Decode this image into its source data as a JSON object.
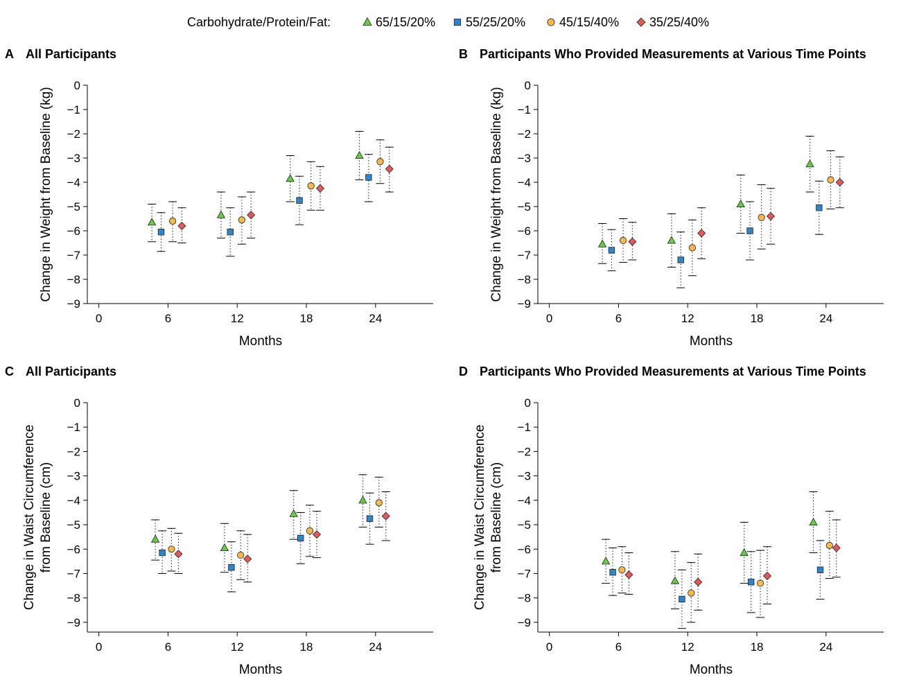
{
  "legend": {
    "title": "Carbohydrate/Protein/Fat:",
    "items": [
      {
        "label": "65/15/20%",
        "color": "#66cc44",
        "shape": "triangle"
      },
      {
        "label": "55/25/20%",
        "color": "#2e86c8",
        "shape": "square"
      },
      {
        "label": "45/15/40%",
        "color": "#f5b84a",
        "shape": "circle"
      },
      {
        "label": "35/25/40%",
        "color": "#e05a5a",
        "shape": "diamond"
      }
    ]
  },
  "chart_data": [
    {
      "panel": "A",
      "title": "All Participants",
      "type": "scatter",
      "xlabel": "Months",
      "ylabel": [
        "Change in Weight from Baseline (kg)"
      ],
      "xticks": [
        0,
        6,
        12,
        18,
        24
      ],
      "yticks": [
        0,
        -1,
        -2,
        -3,
        -4,
        -5,
        -6,
        -7,
        -8,
        -9
      ],
      "xlim": [
        -1,
        29
      ],
      "ylim": [
        -9,
        0
      ],
      "series": [
        {
          "name": "65/15/20%",
          "points": [
            {
              "x": 4.6,
              "y": -5.65,
              "lo": -6.45,
              "hi": -4.9
            },
            {
              "x": 10.6,
              "y": -5.35,
              "lo": -6.3,
              "hi": -4.4
            },
            {
              "x": 16.6,
              "y": -3.85,
              "lo": -4.8,
              "hi": -2.9
            },
            {
              "x": 22.6,
              "y": -2.9,
              "lo": -3.9,
              "hi": -1.9
            }
          ]
        },
        {
          "name": "55/25/20%",
          "points": [
            {
              "x": 5.4,
              "y": -6.05,
              "lo": -6.85,
              "hi": -5.25
            },
            {
              "x": 11.4,
              "y": -6.05,
              "lo": -7.05,
              "hi": -5.05
            },
            {
              "x": 17.4,
              "y": -4.75,
              "lo": -5.75,
              "hi": -3.75
            },
            {
              "x": 23.4,
              "y": -3.8,
              "lo": -4.8,
              "hi": -2.85
            }
          ]
        },
        {
          "name": "45/15/40%",
          "points": [
            {
              "x": 6.4,
              "y": -5.6,
              "lo": -6.45,
              "hi": -4.8
            },
            {
              "x": 12.4,
              "y": -5.55,
              "lo": -6.55,
              "hi": -4.6
            },
            {
              "x": 18.4,
              "y": -4.15,
              "lo": -5.15,
              "hi": -3.15
            },
            {
              "x": 24.4,
              "y": -3.15,
              "lo": -4.05,
              "hi": -2.25
            }
          ]
        },
        {
          "name": "35/25/40%",
          "points": [
            {
              "x": 7.2,
              "y": -5.8,
              "lo": -6.5,
              "hi": -5.05
            },
            {
              "x": 13.2,
              "y": -5.35,
              "lo": -6.3,
              "hi": -4.4
            },
            {
              "x": 19.2,
              "y": -4.25,
              "lo": -5.15,
              "hi": -3.35
            },
            {
              "x": 25.2,
              "y": -3.45,
              "lo": -4.4,
              "hi": -2.55
            }
          ]
        }
      ]
    },
    {
      "panel": "B",
      "title": "Participants Who Provided Measurements at Various Time Points",
      "type": "scatter",
      "xlabel": "Months",
      "ylabel": [
        "Change in Weight from Baseline (kg)"
      ],
      "xticks": [
        0,
        6,
        12,
        18,
        24
      ],
      "yticks": [
        0,
        -1,
        -2,
        -3,
        -4,
        -5,
        -6,
        -7,
        -8,
        -9
      ],
      "xlim": [
        -1,
        29
      ],
      "ylim": [
        -9,
        0
      ],
      "series": [
        {
          "name": "65/15/20%",
          "points": [
            {
              "x": 4.6,
              "y": -6.55,
              "lo": -7.35,
              "hi": -5.7
            },
            {
              "x": 10.6,
              "y": -6.4,
              "lo": -7.5,
              "hi": -5.3
            },
            {
              "x": 16.6,
              "y": -4.9,
              "lo": -6.1,
              "hi": -3.7
            },
            {
              "x": 22.6,
              "y": -3.25,
              "lo": -4.4,
              "hi": -2.1
            }
          ]
        },
        {
          "name": "55/25/20%",
          "points": [
            {
              "x": 5.4,
              "y": -6.8,
              "lo": -7.65,
              "hi": -5.95
            },
            {
              "x": 11.4,
              "y": -7.2,
              "lo": -8.35,
              "hi": -6.05
            },
            {
              "x": 17.4,
              "y": -6.0,
              "lo": -7.2,
              "hi": -4.8
            },
            {
              "x": 23.4,
              "y": -5.05,
              "lo": -6.15,
              "hi": -3.95
            }
          ]
        },
        {
          "name": "45/15/40%",
          "points": [
            {
              "x": 6.4,
              "y": -6.4,
              "lo": -7.3,
              "hi": -5.5
            },
            {
              "x": 12.4,
              "y": -6.7,
              "lo": -7.85,
              "hi": -5.55
            },
            {
              "x": 18.4,
              "y": -5.45,
              "lo": -6.75,
              "hi": -4.1
            },
            {
              "x": 24.4,
              "y": -3.9,
              "lo": -5.1,
              "hi": -2.7
            }
          ]
        },
        {
          "name": "35/25/40%",
          "points": [
            {
              "x": 7.2,
              "y": -6.45,
              "lo": -7.2,
              "hi": -5.65
            },
            {
              "x": 13.2,
              "y": -6.1,
              "lo": -7.15,
              "hi": -5.05
            },
            {
              "x": 19.2,
              "y": -5.4,
              "lo": -6.55,
              "hi": -4.25
            },
            {
              "x": 25.2,
              "y": -4.0,
              "lo": -5.05,
              "hi": -2.95
            }
          ]
        }
      ]
    },
    {
      "panel": "C",
      "title": "All Participants",
      "type": "scatter",
      "xlabel": "Months",
      "ylabel": [
        "Change in Waist Circumference",
        "from Baseline (cm)"
      ],
      "xticks": [
        0,
        6,
        12,
        18,
        24
      ],
      "yticks": [
        0,
        -1,
        -2,
        -3,
        -4,
        -5,
        -6,
        -7,
        -8,
        -9
      ],
      "xlim": [
        -1,
        29
      ],
      "ylim": [
        -9.4,
        0
      ],
      "series": [
        {
          "name": "65/15/20%",
          "points": [
            {
              "x": 4.9,
              "y": -5.6,
              "lo": -6.45,
              "hi": -4.8
            },
            {
              "x": 10.9,
              "y": -5.95,
              "lo": -6.95,
              "hi": -4.95
            },
            {
              "x": 16.9,
              "y": -4.55,
              "lo": -5.6,
              "hi": -3.6
            },
            {
              "x": 22.9,
              "y": -4.0,
              "lo": -5.1,
              "hi": -2.95
            }
          ]
        },
        {
          "name": "55/25/20%",
          "points": [
            {
              "x": 5.5,
              "y": -6.15,
              "lo": -7.0,
              "hi": -5.25
            },
            {
              "x": 11.5,
              "y": -6.75,
              "lo": -7.75,
              "hi": -5.7
            },
            {
              "x": 17.5,
              "y": -5.55,
              "lo": -6.6,
              "hi": -4.5
            },
            {
              "x": 23.5,
              "y": -4.75,
              "lo": -5.8,
              "hi": -3.7
            }
          ]
        },
        {
          "name": "45/15/40%",
          "points": [
            {
              "x": 6.3,
              "y": -6.0,
              "lo": -6.9,
              "hi": -5.15
            },
            {
              "x": 12.3,
              "y": -6.25,
              "lo": -7.25,
              "hi": -5.25
            },
            {
              "x": 18.3,
              "y": -5.25,
              "lo": -6.3,
              "hi": -4.2
            },
            {
              "x": 24.3,
              "y": -4.1,
              "lo": -5.1,
              "hi": -3.05
            }
          ]
        },
        {
          "name": "35/25/40%",
          "points": [
            {
              "x": 6.9,
              "y": -6.2,
              "lo": -7.0,
              "hi": -5.35
            },
            {
              "x": 12.9,
              "y": -6.4,
              "lo": -7.35,
              "hi": -5.4
            },
            {
              "x": 18.9,
              "y": -5.4,
              "lo": -6.35,
              "hi": -4.45
            },
            {
              "x": 24.9,
              "y": -4.65,
              "lo": -5.65,
              "hi": -3.65
            }
          ]
        }
      ]
    },
    {
      "panel": "D",
      "title": "Participants Who Provided Measurements at Various Time Points",
      "type": "scatter",
      "xlabel": "Months",
      "ylabel": [
        "Change in Waist Circumference",
        "from Baseline (cm)"
      ],
      "xticks": [
        0,
        6,
        12,
        18,
        24
      ],
      "yticks": [
        0,
        -1,
        -2,
        -3,
        -4,
        -5,
        -6,
        -7,
        -8,
        -9
      ],
      "xlim": [
        -1,
        29
      ],
      "ylim": [
        -9.4,
        0
      ],
      "series": [
        {
          "name": "65/15/20%",
          "points": [
            {
              "x": 4.9,
              "y": -6.5,
              "lo": -7.4,
              "hi": -5.6
            },
            {
              "x": 10.9,
              "y": -7.3,
              "lo": -8.45,
              "hi": -6.1
            },
            {
              "x": 16.9,
              "y": -6.15,
              "lo": -7.4,
              "hi": -4.9
            },
            {
              "x": 22.9,
              "y": -4.9,
              "lo": -6.15,
              "hi": -3.65
            }
          ]
        },
        {
          "name": "55/25/20%",
          "points": [
            {
              "x": 5.5,
              "y": -6.95,
              "lo": -7.9,
              "hi": -5.95
            },
            {
              "x": 11.5,
              "y": -8.05,
              "lo": -9.25,
              "hi": -6.85
            },
            {
              "x": 17.5,
              "y": -7.35,
              "lo": -8.6,
              "hi": -6.1
            },
            {
              "x": 23.5,
              "y": -6.85,
              "lo": -8.05,
              "hi": -5.65
            }
          ]
        },
        {
          "name": "45/15/40%",
          "points": [
            {
              "x": 6.3,
              "y": -6.85,
              "lo": -7.8,
              "hi": -5.9
            },
            {
              "x": 12.3,
              "y": -7.8,
              "lo": -9.0,
              "hi": -6.55
            },
            {
              "x": 18.3,
              "y": -7.4,
              "lo": -8.8,
              "hi": -6.05
            },
            {
              "x": 24.3,
              "y": -5.85,
              "lo": -7.2,
              "hi": -4.45
            }
          ]
        },
        {
          "name": "35/25/40%",
          "points": [
            {
              "x": 6.9,
              "y": -7.05,
              "lo": -7.85,
              "hi": -6.15
            },
            {
              "x": 12.9,
              "y": -7.35,
              "lo": -8.5,
              "hi": -6.2
            },
            {
              "x": 18.9,
              "y": -7.1,
              "lo": -8.25,
              "hi": -5.9
            },
            {
              "x": 24.9,
              "y": -5.95,
              "lo": -7.15,
              "hi": -4.8
            }
          ]
        }
      ]
    }
  ]
}
